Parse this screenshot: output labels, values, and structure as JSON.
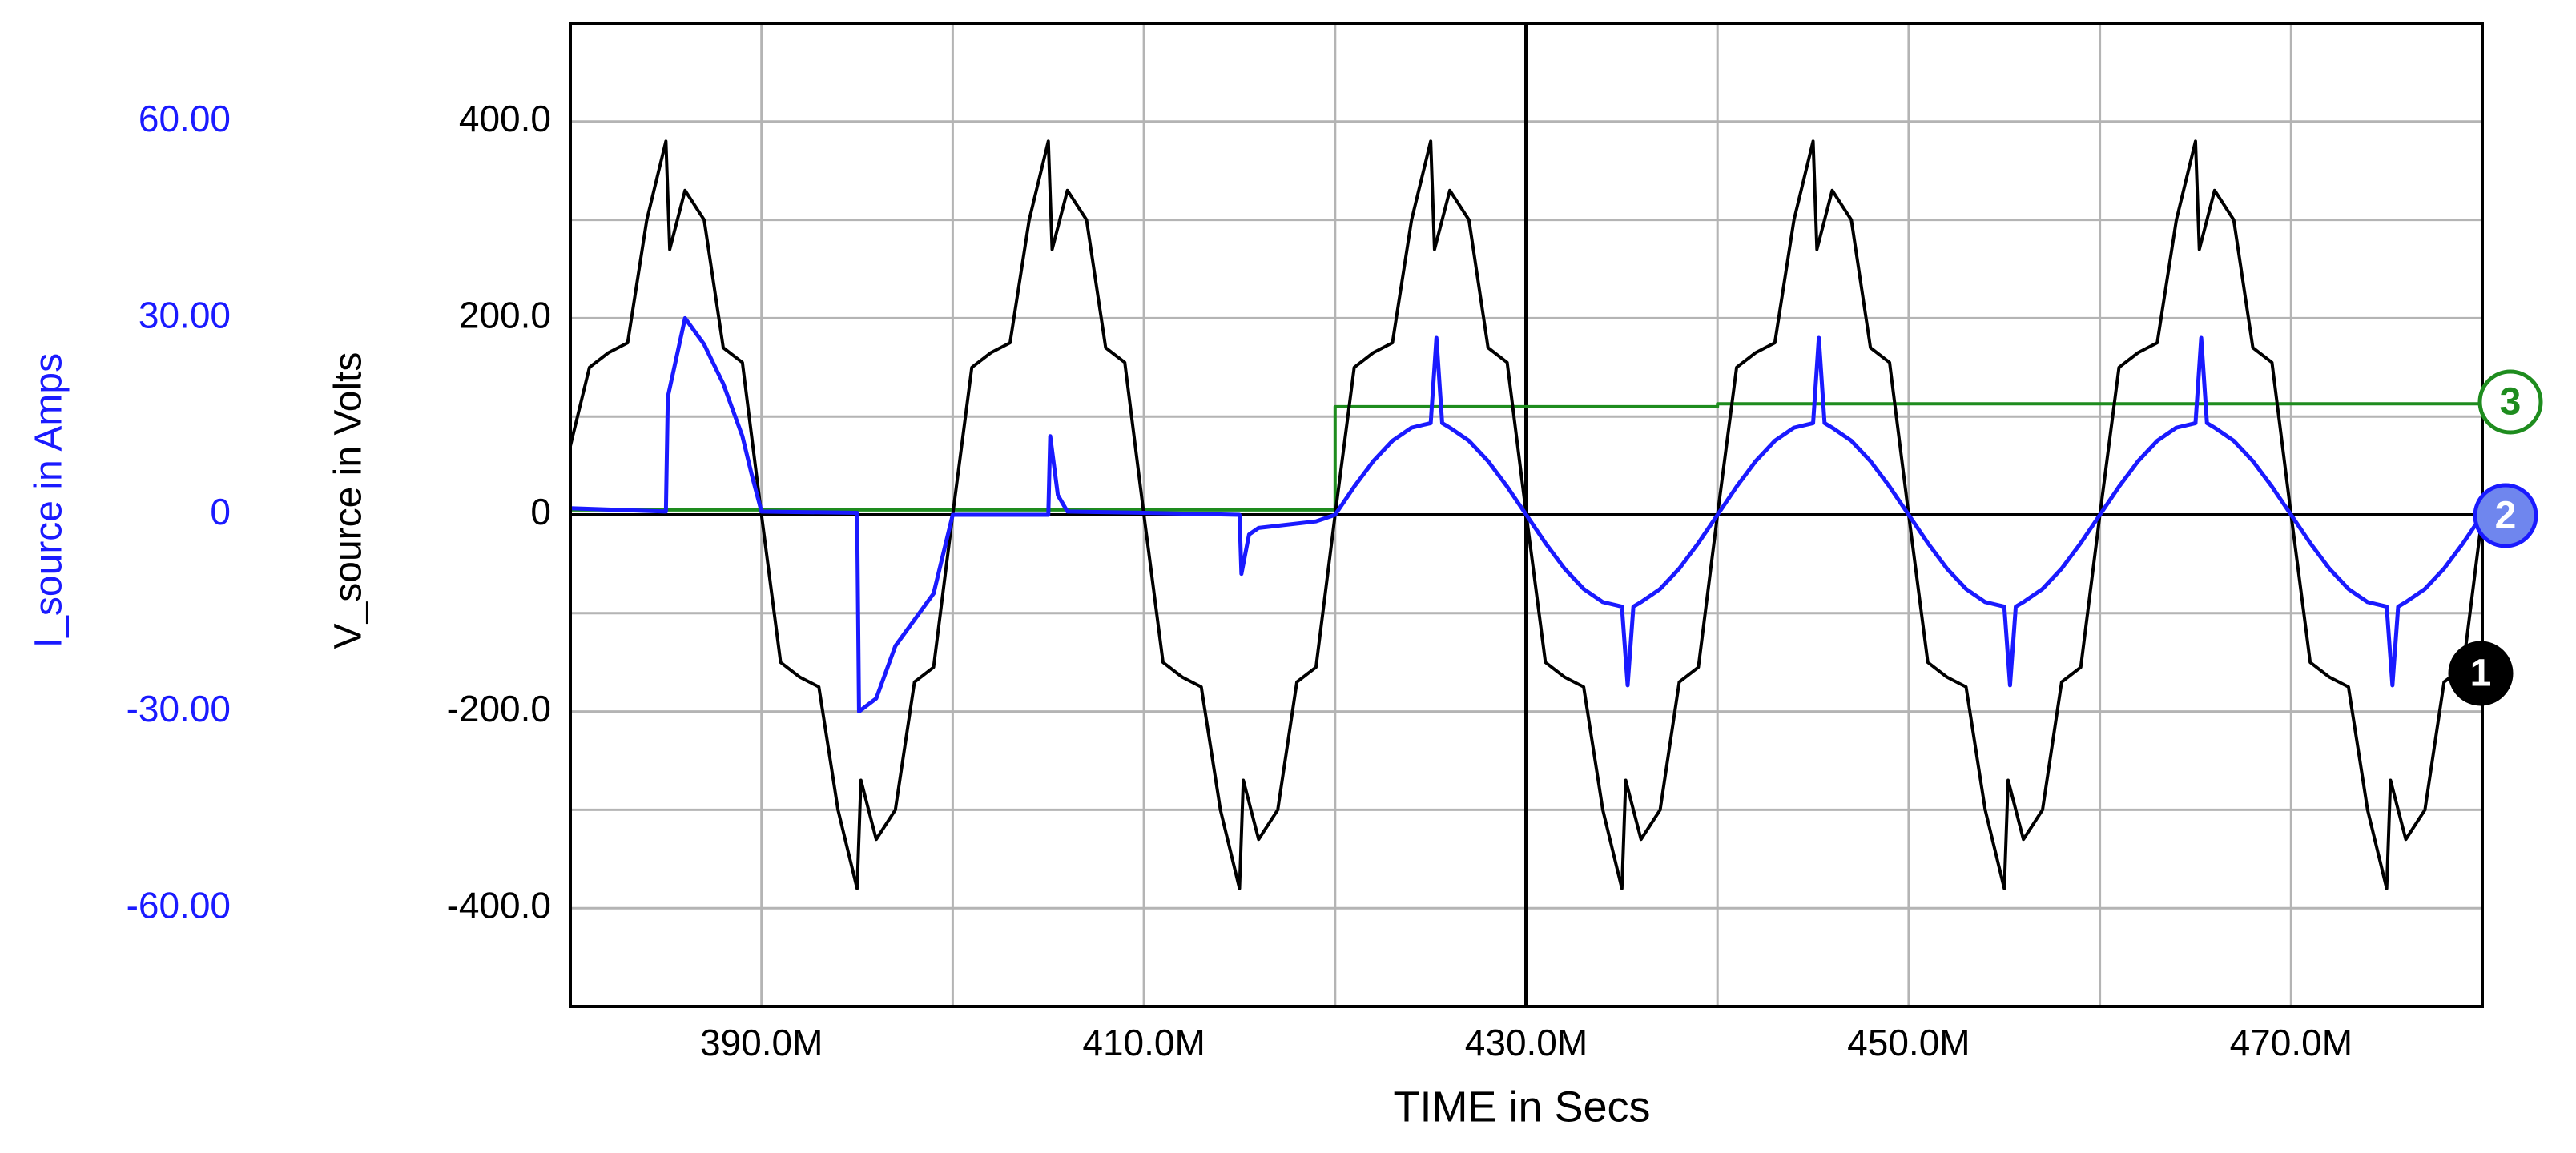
{
  "chart_data": {
    "type": "line",
    "x_label": "TIME in Secs",
    "y_label": "V_source in Volts",
    "y2_label": "I_source in Amps",
    "xlim": [
      0.38,
      0.48
    ],
    "xticks": [
      {
        "value": 0.39,
        "label": "390.0M"
      },
      {
        "value": 0.41,
        "label": "410.0M"
      },
      {
        "value": 0.43,
        "label": "430.0M"
      },
      {
        "value": 0.45,
        "label": "450.0M"
      },
      {
        "value": 0.47,
        "label": "470.0M"
      }
    ],
    "xgrid": [
      0.39,
      0.4,
      0.41,
      0.42,
      0.43,
      0.44,
      0.45,
      0.46,
      0.47
    ],
    "ylim": [
      -500,
      500
    ],
    "yticks": [
      {
        "value": 400,
        "label": "400.0"
      },
      {
        "value": 200,
        "label": "200.0"
      },
      0,
      {
        "value": -200,
        "label": "-200.0"
      },
      {
        "value": -400,
        "label": "-400.0"
      }
    ],
    "ygrid": [
      -400,
      -300,
      -200,
      -100,
      0,
      100,
      200,
      300,
      400
    ],
    "y2lim": [
      -75,
      75
    ],
    "y2ticks": [
      {
        "value": 60,
        "label": "60.00"
      },
      {
        "value": 30,
        "label": "30.00"
      },
      0,
      {
        "value": -30,
        "label": "-30.00"
      },
      {
        "value": -60,
        "label": "-60.00"
      }
    ],
    "grid": true,
    "series": [
      {
        "name": "1",
        "color": "#000000",
        "x": [
          0.38,
          0.381,
          0.382,
          0.383,
          0.384,
          0.385,
          0.3852,
          0.386,
          0.387,
          0.388,
          0.389,
          0.39,
          0.391,
          0.392,
          0.393,
          0.394,
          0.395,
          0.3952,
          0.396,
          0.397,
          0.398,
          0.399,
          0.4,
          0.401,
          0.402,
          0.403,
          0.404,
          0.405,
          0.4052,
          0.406,
          0.407,
          0.408,
          0.409,
          0.41,
          0.411,
          0.412,
          0.413,
          0.414,
          0.415,
          0.4152,
          0.416,
          0.417,
          0.418,
          0.419,
          0.42,
          0.421,
          0.422,
          0.423,
          0.424,
          0.425,
          0.4252,
          0.426,
          0.427,
          0.428,
          0.429,
          0.43,
          0.431,
          0.432,
          0.433,
          0.434,
          0.435,
          0.4352,
          0.436,
          0.437,
          0.438,
          0.439,
          0.44,
          0.441,
          0.442,
          0.443,
          0.444,
          0.445,
          0.4452,
          0.446,
          0.447,
          0.448,
          0.449,
          0.45,
          0.451,
          0.452,
          0.453,
          0.454,
          0.455,
          0.4552,
          0.456,
          0.457,
          0.458,
          0.459,
          0.46,
          0.461,
          0.462,
          0.463,
          0.464,
          0.465,
          0.4652,
          0.466,
          0.467,
          0.468,
          0.469,
          0.47,
          0.471,
          0.472,
          0.473,
          0.474,
          0.475,
          0.4752,
          0.476,
          0.477,
          0.478,
          0.479,
          0.48
        ],
        "values": [
          70,
          150,
          165,
          175,
          300,
          380,
          270,
          330,
          300,
          170,
          155,
          0,
          -150,
          -165,
          -175,
          -300,
          -380,
          -270,
          -330,
          -300,
          -170,
          -155,
          0,
          150,
          165,
          175,
          300,
          380,
          270,
          330,
          300,
          170,
          155,
          0,
          -150,
          -165,
          -175,
          -300,
          -380,
          -270,
          -330,
          -300,
          -170,
          -155,
          0,
          150,
          165,
          175,
          300,
          380,
          270,
          330,
          300,
          170,
          155,
          0,
          -150,
          -165,
          -175,
          -300,
          -380,
          -270,
          -330,
          -300,
          -170,
          -155,
          0,
          150,
          165,
          175,
          300,
          380,
          270,
          330,
          300,
          170,
          155,
          0,
          -150,
          -165,
          -175,
          -300,
          -380,
          -270,
          -330,
          -300,
          -170,
          -155,
          0,
          150,
          165,
          175,
          300,
          380,
          270,
          330,
          300,
          170,
          155,
          0,
          -150,
          -165,
          -175,
          -300,
          -380,
          -270,
          -330,
          -300,
          -170,
          -155,
          0
        ]
      },
      {
        "name": "2",
        "color": "#1a1aff",
        "axis": "y2",
        "x": [
          0.38,
          0.385,
          0.3851,
          0.386,
          0.387,
          0.388,
          0.389,
          0.3895,
          0.39,
          0.395,
          0.3951,
          0.396,
          0.397,
          0.398,
          0.399,
          0.3995,
          0.4,
          0.405,
          0.4051,
          0.4055,
          0.406,
          0.41,
          0.415,
          0.4151,
          0.4155,
          0.416,
          0.419,
          0.42,
          0.421,
          0.422,
          0.423,
          0.424,
          0.425,
          0.4253,
          0.4256,
          0.426,
          0.427,
          0.428,
          0.429,
          0.43,
          0.431,
          0.432,
          0.433,
          0.434,
          0.435,
          0.4353,
          0.4356,
          0.436,
          0.437,
          0.438,
          0.439,
          0.44,
          0.441,
          0.442,
          0.443,
          0.444,
          0.445,
          0.4453,
          0.4456,
          0.446,
          0.447,
          0.448,
          0.449,
          0.45,
          0.451,
          0.452,
          0.453,
          0.454,
          0.455,
          0.4553,
          0.4556,
          0.456,
          0.457,
          0.458,
          0.459,
          0.46,
          0.461,
          0.462,
          0.463,
          0.464,
          0.465,
          0.4653,
          0.4656,
          0.466,
          0.467,
          0.468,
          0.469,
          0.47,
          0.471,
          0.472,
          0.473,
          0.474,
          0.475,
          0.4753,
          0.4756,
          0.476,
          0.477,
          0.478,
          0.479,
          0.48
        ],
        "values": [
          1,
          0.5,
          18,
          30,
          26,
          20,
          12,
          6,
          0.5,
          0.3,
          -30,
          -28,
          -20,
          -16,
          -12,
          -6,
          0,
          0,
          12,
          3,
          0.5,
          0.3,
          0,
          -9,
          -3,
          -2,
          -1,
          0,
          4.3,
          8.2,
          11.3,
          13.3,
          14,
          27,
          14,
          13.3,
          11.3,
          8.2,
          4.3,
          0,
          -4.3,
          -8.2,
          -11.3,
          -13.3,
          -14,
          -26,
          -14,
          -13.3,
          -11.3,
          -8.2,
          -4.3,
          0,
          4.3,
          8.2,
          11.3,
          13.3,
          14,
          27,
          14,
          13.3,
          11.3,
          8.2,
          4.3,
          0,
          -4.3,
          -8.2,
          -11.3,
          -13.3,
          -14,
          -26,
          -14,
          -13.3,
          -11.3,
          -8.2,
          -4.3,
          0,
          4.3,
          8.2,
          11.3,
          13.3,
          14,
          27,
          14,
          13.3,
          11.3,
          8.2,
          4.3,
          0,
          -4.3,
          -8.2,
          -11.3,
          -13.3,
          -14,
          -26,
          -14,
          -13.3,
          -11.3,
          -8.2,
          -4.3,
          0
        ]
      },
      {
        "name": "3",
        "color": "#1e8c1e",
        "x": [
          0.38,
          0.42,
          0.42,
          0.44,
          0.44,
          0.48
        ],
        "values": [
          5,
          5,
          110,
          110,
          113,
          113
        ]
      }
    ]
  }
}
